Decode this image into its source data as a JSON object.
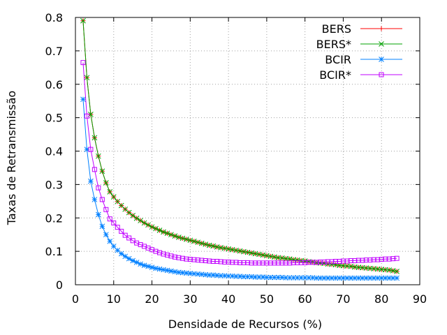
{
  "chart_data": {
    "type": "line",
    "title": "",
    "xlabel": "Densidade de Recursos (%)",
    "ylabel": "Taxas de Retransmissão",
    "xlim": [
      0,
      90
    ],
    "ylim": [
      0,
      0.8
    ],
    "xticks": [
      0,
      10,
      20,
      30,
      40,
      50,
      60,
      70,
      80,
      90
    ],
    "yticks": [
      0,
      0.1,
      0.2,
      0.3,
      0.4,
      0.5,
      0.6,
      0.7,
      0.8
    ],
    "xtick_labels": [
      "0",
      "10",
      "20",
      "30",
      "40",
      "50",
      "60",
      "70",
      "80",
      "90"
    ],
    "ytick_labels": [
      "0",
      "0.1",
      "0.2",
      "0.3",
      "0.4",
      "0.5",
      "0.6",
      "0.7",
      "0.8"
    ],
    "grid": true,
    "legend_position": "top-right",
    "x": [
      2,
      3,
      4,
      5,
      6,
      7,
      8,
      9,
      10,
      11,
      12,
      13,
      14,
      15,
      16,
      17,
      18,
      19,
      20,
      21,
      22,
      23,
      24,
      25,
      26,
      27,
      28,
      29,
      30,
      31,
      32,
      33,
      34,
      35,
      36,
      37,
      38,
      39,
      40,
      41,
      42,
      43,
      44,
      45,
      46,
      47,
      48,
      49,
      50,
      51,
      52,
      53,
      54,
      55,
      56,
      57,
      58,
      59,
      60,
      61,
      62,
      63,
      64,
      65,
      66,
      67,
      68,
      69,
      70,
      71,
      72,
      73,
      74,
      75,
      76,
      77,
      78,
      79,
      80,
      81,
      82,
      83,
      84
    ],
    "series": [
      {
        "name": "BERS",
        "color": "#ff0000",
        "marker": "plus",
        "values": [
          0.79,
          0.62,
          0.51,
          0.44,
          0.385,
          0.34,
          0.305,
          0.278,
          0.263,
          0.249,
          0.237,
          0.226,
          0.216,
          0.207,
          0.199,
          0.192,
          0.185,
          0.179,
          0.173,
          0.168,
          0.163,
          0.158,
          0.154,
          0.15,
          0.146,
          0.142,
          0.139,
          0.136,
          0.133,
          0.13,
          0.127,
          0.124,
          0.121,
          0.118,
          0.116,
          0.113,
          0.111,
          0.109,
          0.107,
          0.105,
          0.103,
          0.101,
          0.099,
          0.097,
          0.095,
          0.093,
          0.091,
          0.089,
          0.087,
          0.085,
          0.083,
          0.081,
          0.08,
          0.078,
          0.077,
          0.075,
          0.074,
          0.072,
          0.071,
          0.069,
          0.068,
          0.066,
          0.065,
          0.064,
          0.062,
          0.061,
          0.06,
          0.058,
          0.057,
          0.056,
          0.055,
          0.053,
          0.052,
          0.051,
          0.05,
          0.049,
          0.048,
          0.047,
          0.046,
          0.045,
          0.044,
          0.042,
          0.04
        ]
      },
      {
        "name": "BERS*",
        "color": "#00a000",
        "marker": "cross",
        "values": [
          0.79,
          0.62,
          0.51,
          0.44,
          0.385,
          0.34,
          0.305,
          0.278,
          0.263,
          0.249,
          0.237,
          0.226,
          0.216,
          0.207,
          0.199,
          0.192,
          0.185,
          0.179,
          0.173,
          0.168,
          0.163,
          0.158,
          0.154,
          0.15,
          0.146,
          0.142,
          0.139,
          0.136,
          0.133,
          0.13,
          0.127,
          0.124,
          0.121,
          0.118,
          0.116,
          0.113,
          0.111,
          0.109,
          0.107,
          0.105,
          0.103,
          0.101,
          0.099,
          0.097,
          0.095,
          0.093,
          0.091,
          0.089,
          0.087,
          0.085,
          0.083,
          0.081,
          0.08,
          0.078,
          0.077,
          0.075,
          0.074,
          0.072,
          0.071,
          0.069,
          0.068,
          0.066,
          0.065,
          0.064,
          0.062,
          0.061,
          0.06,
          0.058,
          0.057,
          0.056,
          0.055,
          0.053,
          0.052,
          0.051,
          0.05,
          0.049,
          0.048,
          0.047,
          0.046,
          0.045,
          0.044,
          0.042,
          0.04
        ]
      },
      {
        "name": "BCIR",
        "color": "#0080ff",
        "marker": "star",
        "values": [
          0.555,
          0.405,
          0.31,
          0.255,
          0.21,
          0.175,
          0.15,
          0.13,
          0.115,
          0.103,
          0.093,
          0.085,
          0.078,
          0.072,
          0.067,
          0.062,
          0.058,
          0.055,
          0.052,
          0.049,
          0.047,
          0.045,
          0.043,
          0.041,
          0.039,
          0.037,
          0.036,
          0.035,
          0.034,
          0.033,
          0.032,
          0.031,
          0.03,
          0.029,
          0.029,
          0.028,
          0.027,
          0.027,
          0.026,
          0.026,
          0.025,
          0.025,
          0.024,
          0.024,
          0.024,
          0.023,
          0.023,
          0.023,
          0.022,
          0.022,
          0.022,
          0.022,
          0.022,
          0.021,
          0.021,
          0.021,
          0.021,
          0.021,
          0.021,
          0.021,
          0.021,
          0.02,
          0.02,
          0.02,
          0.02,
          0.02,
          0.02,
          0.02,
          0.02,
          0.02,
          0.02,
          0.02,
          0.02,
          0.02,
          0.02,
          0.02,
          0.02,
          0.02,
          0.02,
          0.02,
          0.02,
          0.02,
          0.02
        ]
      },
      {
        "name": "BCIR*",
        "color": "#c000ff",
        "marker": "square",
        "values": [
          0.665,
          0.505,
          0.405,
          0.345,
          0.29,
          0.255,
          0.225,
          0.197,
          0.185,
          0.172,
          0.16,
          0.148,
          0.14,
          0.132,
          0.125,
          0.12,
          0.115,
          0.11,
          0.105,
          0.1,
          0.096,
          0.092,
          0.089,
          0.086,
          0.083,
          0.081,
          0.079,
          0.077,
          0.076,
          0.075,
          0.074,
          0.073,
          0.072,
          0.071,
          0.07,
          0.07,
          0.069,
          0.068,
          0.068,
          0.067,
          0.067,
          0.066,
          0.066,
          0.066,
          0.065,
          0.065,
          0.065,
          0.065,
          0.065,
          0.065,
          0.065,
          0.065,
          0.065,
          0.065,
          0.065,
          0.066,
          0.066,
          0.066,
          0.066,
          0.067,
          0.067,
          0.067,
          0.068,
          0.068,
          0.069,
          0.069,
          0.07,
          0.07,
          0.071,
          0.071,
          0.072,
          0.072,
          0.073,
          0.073,
          0.074,
          0.074,
          0.075,
          0.075,
          0.076,
          0.077,
          0.077,
          0.078,
          0.079
        ]
      }
    ]
  }
}
